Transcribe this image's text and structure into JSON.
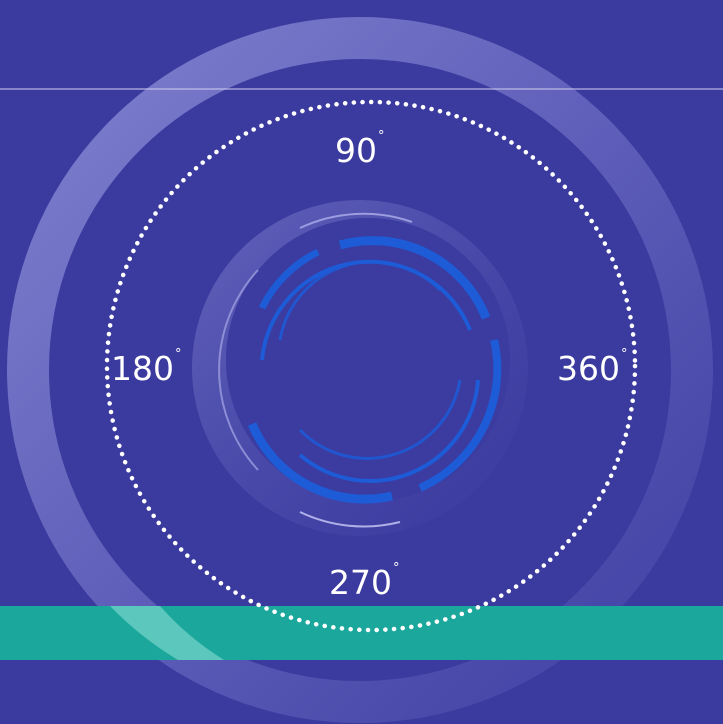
{
  "colors": {
    "background": "#3a3a9f",
    "teal_band": "#1ba79b",
    "ring_light": "#8e8ed6",
    "ring_accent_blue": "#1e5bd6",
    "white": "#ffffff"
  },
  "dial": {
    "labels": {
      "top": {
        "value": "90",
        "unit": "°"
      },
      "left": {
        "value": "180",
        "unit": "°"
      },
      "right": {
        "value": "360",
        "unit": "°"
      },
      "bottom": {
        "value": "270",
        "unit": "°"
      }
    }
  }
}
